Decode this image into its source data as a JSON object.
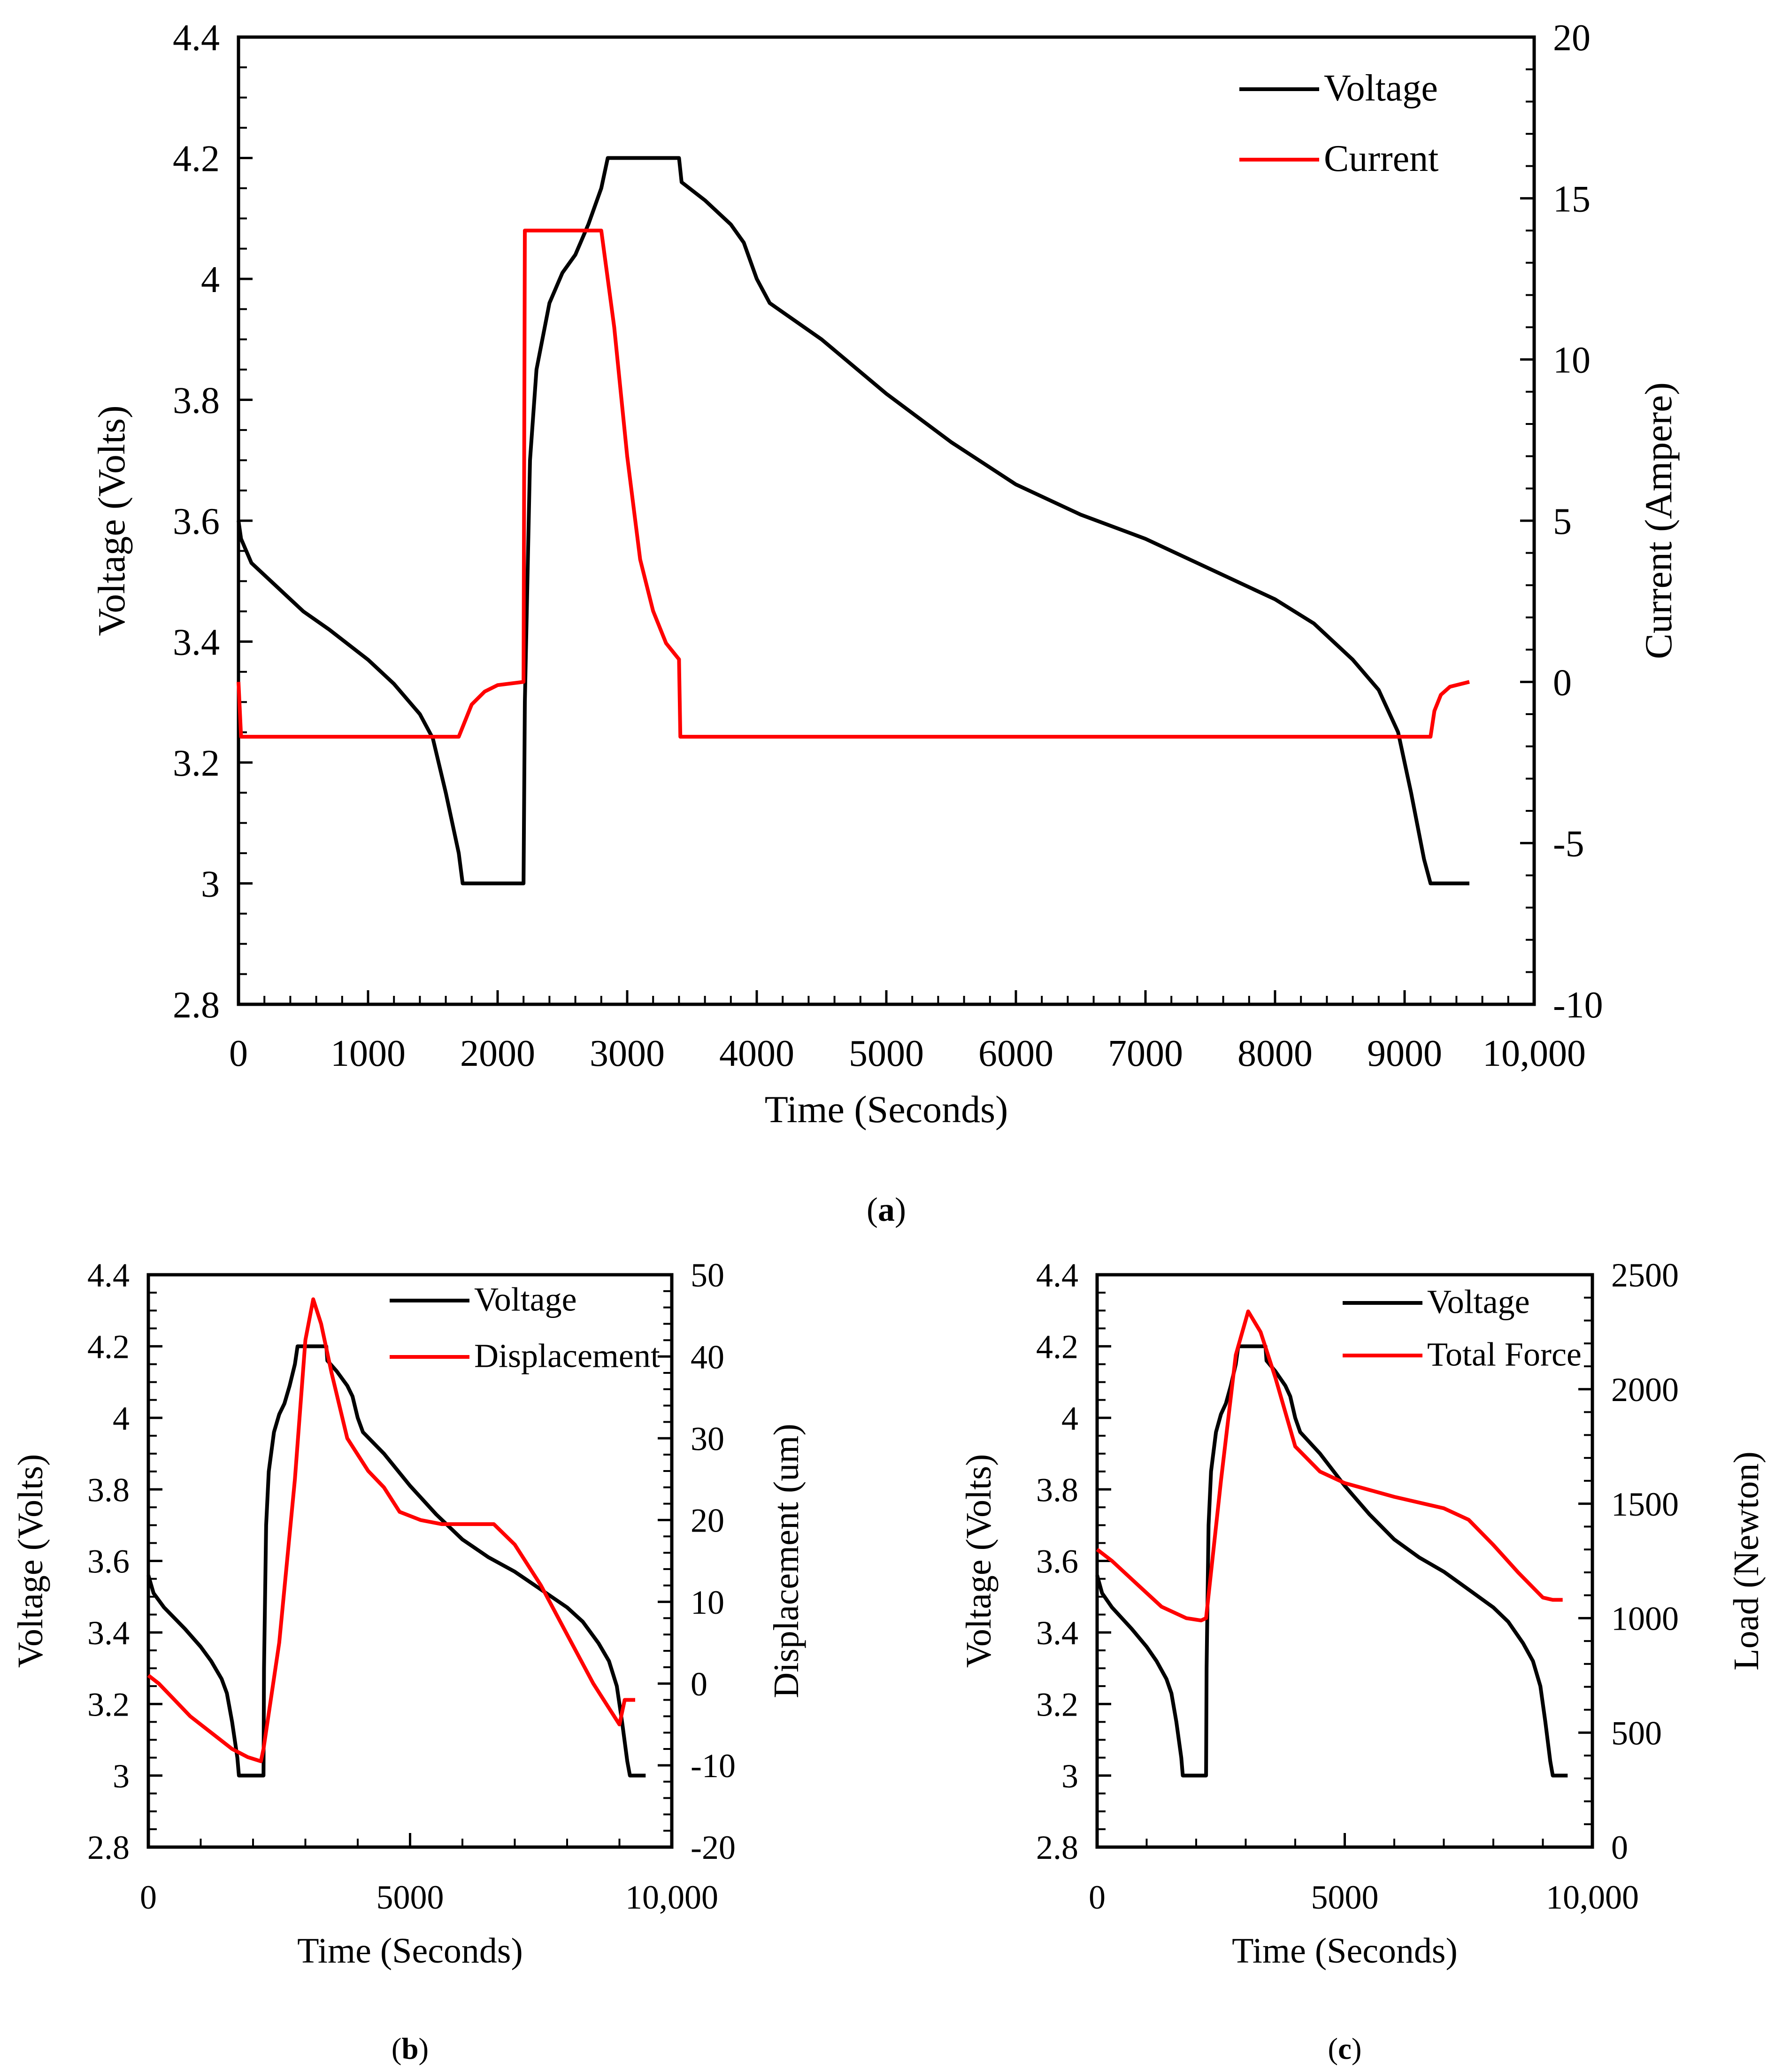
{
  "chart_data": [
    {
      "id": "a",
      "type": "line",
      "caption": "(a)",
      "caption_letter": "a",
      "xlabel": "Time (Seconds)",
      "ylabel": "Voltage (Volts)",
      "y2label": "Current (Ampere)",
      "xlim": [
        0,
        10000
      ],
      "ylim": [
        2.8,
        4.4
      ],
      "y2lim": [
        -10,
        20
      ],
      "xticks": [
        "0",
        "1000",
        "2000",
        "3000",
        "4000",
        "5000",
        "6000",
        "7000",
        "8000",
        "9000",
        "10,000"
      ],
      "xtick_values": [
        0,
        1000,
        2000,
        3000,
        4000,
        5000,
        6000,
        7000,
        8000,
        9000,
        10000
      ],
      "yticks": [
        "2.8",
        "3",
        "3.2",
        "3.4",
        "3.6",
        "3.8",
        "4",
        "4.2",
        "4.4"
      ],
      "ytick_values": [
        2.8,
        3.0,
        3.2,
        3.4,
        3.6,
        3.8,
        4.0,
        4.2,
        4.4
      ],
      "y2ticks": [
        "-10",
        "-5",
        "0",
        "5",
        "10",
        "15",
        "20"
      ],
      "y2tick_values": [
        -10,
        -5,
        0,
        5,
        10,
        15,
        20
      ],
      "legend_position": "top-right",
      "series": [
        {
          "name": "Voltage",
          "axis": "left",
          "color": "#000000",
          "x": [
            0,
            20,
            100,
            300,
            500,
            700,
            1000,
            1200,
            1400,
            1500,
            1600,
            1700,
            1730,
            2200,
            2210,
            2250,
            2300,
            2400,
            2500,
            2600,
            2700,
            2800,
            2850,
            3400,
            3420,
            3600,
            3800,
            3900,
            4000,
            4100,
            4500,
            5000,
            5500,
            6000,
            6500,
            7000,
            7500,
            8000,
            8300,
            8600,
            8800,
            8950,
            9050,
            9150,
            9200,
            9500
          ],
          "y": [
            3.6,
            3.57,
            3.53,
            3.49,
            3.45,
            3.42,
            3.37,
            3.33,
            3.28,
            3.24,
            3.15,
            3.05,
            3.0,
            3.0,
            3.3,
            3.7,
            3.85,
            3.96,
            4.01,
            4.04,
            4.09,
            4.15,
            4.2,
            4.2,
            4.16,
            4.13,
            4.09,
            4.06,
            4.0,
            3.96,
            3.9,
            3.81,
            3.73,
            3.66,
            3.61,
            3.57,
            3.52,
            3.47,
            3.43,
            3.37,
            3.32,
            3.25,
            3.15,
            3.04,
            3.0,
            3.0
          ]
        },
        {
          "name": "Current",
          "axis": "right",
          "color": "#ff0000",
          "x": [
            0,
            20,
            1700,
            1750,
            1800,
            1900,
            2000,
            2200,
            2210,
            2800,
            2900,
            3000,
            3100,
            3200,
            3300,
            3400,
            3410,
            9200,
            9230,
            9280,
            9350,
            9500
          ],
          "y": [
            0,
            -1.7,
            -1.7,
            -1.2,
            -0.7,
            -0.3,
            -0.1,
            0,
            14,
            14,
            11,
            7,
            3.8,
            2.2,
            1.2,
            0.7,
            -1.7,
            -1.7,
            -0.9,
            -0.4,
            -0.15,
            0
          ]
        }
      ]
    },
    {
      "id": "b",
      "type": "line",
      "caption": "(b)",
      "caption_letter": "b",
      "xlabel": "Time (Seconds)",
      "ylabel": "Voltage (Volts)",
      "y2label": "Displacement  (um)",
      "xlim": [
        0,
        10000
      ],
      "ylim": [
        2.8,
        4.4
      ],
      "y2lim": [
        -20,
        50
      ],
      "xticks": [
        "0",
        "5000",
        "10,000"
      ],
      "xtick_values": [
        0,
        5000,
        10000
      ],
      "yticks": [
        "2.8",
        "3",
        "3.2",
        "3.4",
        "3.6",
        "3.8",
        "4",
        "4.2",
        "4.4"
      ],
      "ytick_values": [
        2.8,
        3.0,
        3.2,
        3.4,
        3.6,
        3.8,
        4.0,
        4.2,
        4.4
      ],
      "y2ticks": [
        "-20",
        "-10",
        "0",
        "10",
        "20",
        "30",
        "40",
        "50"
      ],
      "y2tick_values": [
        -20,
        -10,
        0,
        10,
        20,
        30,
        40,
        50
      ],
      "legend_position": "top-right",
      "series": [
        {
          "name": "Voltage",
          "axis": "left",
          "color": "#000000",
          "x": [
            0,
            100,
            300,
            500,
            700,
            1000,
            1200,
            1400,
            1500,
            1600,
            1700,
            1730,
            2200,
            2210,
            2250,
            2300,
            2400,
            2500,
            2600,
            2700,
            2800,
            2850,
            3400,
            3420,
            3600,
            3800,
            3900,
            4000,
            4100,
            4500,
            5000,
            5500,
            6000,
            6500,
            7000,
            7500,
            8000,
            8300,
            8600,
            8800,
            8950,
            9050,
            9150,
            9200,
            9500
          ],
          "y": [
            3.56,
            3.51,
            3.47,
            3.44,
            3.41,
            3.36,
            3.32,
            3.27,
            3.23,
            3.15,
            3.05,
            3.0,
            3.0,
            3.3,
            3.7,
            3.85,
            3.96,
            4.01,
            4.04,
            4.09,
            4.15,
            4.2,
            4.2,
            4.16,
            4.13,
            4.09,
            4.06,
            4.0,
            3.96,
            3.9,
            3.81,
            3.73,
            3.66,
            3.61,
            3.57,
            3.52,
            3.47,
            3.43,
            3.37,
            3.32,
            3.25,
            3.15,
            3.04,
            3.0,
            3.0
          ]
        },
        {
          "name": "Displacement",
          "axis": "right",
          "color": "#ff0000",
          "x": [
            0,
            200,
            500,
            800,
            1200,
            1600,
            1900,
            2150,
            2200,
            2500,
            2800,
            3000,
            3150,
            3300,
            3500,
            3800,
            4200,
            4500,
            4800,
            5200,
            5600,
            6200,
            6600,
            7000,
            7500,
            8000,
            8500,
            8800,
            9000,
            9100,
            9300
          ],
          "y": [
            1,
            0,
            -2,
            -4,
            -6,
            -8,
            -9,
            -9.5,
            -8,
            5,
            25,
            42,
            47,
            44,
            38,
            30,
            26,
            24,
            21,
            20,
            19.5,
            19.5,
            19.5,
            17,
            12,
            6,
            0,
            -3,
            -5,
            -2,
            -2
          ]
        }
      ]
    },
    {
      "id": "c",
      "type": "line",
      "caption": "(c)",
      "caption_letter": "c",
      "xlabel": "Time (Seconds)",
      "ylabel": "Voltage (Volts)",
      "y2label": "Load (Newton)",
      "xlim": [
        0,
        10000
      ],
      "ylim": [
        2.8,
        4.4
      ],
      "y2lim": [
        0,
        2500
      ],
      "xticks": [
        "0",
        "5000",
        "10,000"
      ],
      "xtick_values": [
        0,
        5000,
        10000
      ],
      "yticks": [
        "2.8",
        "3",
        "3.2",
        "3.4",
        "3.6",
        "3.8",
        "4",
        "4.2",
        "4.4"
      ],
      "ytick_values": [
        2.8,
        3.0,
        3.2,
        3.4,
        3.6,
        3.8,
        4.0,
        4.2,
        4.4
      ],
      "y2ticks": [
        "0",
        "500",
        "1000",
        "1500",
        "2000",
        "2500"
      ],
      "y2tick_values": [
        0,
        500,
        1000,
        1500,
        2000,
        2500
      ],
      "legend_position": "top-right",
      "series": [
        {
          "name": "Voltage",
          "axis": "left",
          "color": "#000000",
          "x": [
            0,
            100,
            300,
            500,
            700,
            1000,
            1200,
            1400,
            1500,
            1600,
            1700,
            1730,
            2200,
            2210,
            2250,
            2300,
            2400,
            2500,
            2600,
            2700,
            2800,
            2850,
            3400,
            3420,
            3600,
            3800,
            3900,
            4000,
            4100,
            4500,
            5000,
            5500,
            6000,
            6500,
            7000,
            7500,
            8000,
            8300,
            8600,
            8800,
            8950,
            9050,
            9150,
            9200,
            9500
          ],
          "y": [
            3.56,
            3.51,
            3.47,
            3.44,
            3.41,
            3.36,
            3.32,
            3.27,
            3.23,
            3.15,
            3.05,
            3.0,
            3.0,
            3.3,
            3.7,
            3.85,
            3.96,
            4.01,
            4.04,
            4.09,
            4.15,
            4.2,
            4.2,
            4.16,
            4.13,
            4.09,
            4.06,
            4.0,
            3.96,
            3.9,
            3.81,
            3.73,
            3.66,
            3.61,
            3.57,
            3.52,
            3.47,
            3.43,
            3.37,
            3.32,
            3.25,
            3.15,
            3.04,
            3.0,
            3.0
          ]
        },
        {
          "name": "Total Force",
          "axis": "right",
          "color": "#ff0000",
          "x": [
            0,
            300,
            800,
            1300,
            1800,
            2100,
            2200,
            2500,
            2800,
            3050,
            3300,
            3600,
            4000,
            4500,
            5000,
            6000,
            7000,
            7500,
            8000,
            8500,
            9000,
            9200,
            9400
          ],
          "y": [
            1300,
            1250,
            1150,
            1050,
            1000,
            990,
            1000,
            1600,
            2150,
            2340,
            2250,
            2050,
            1750,
            1640,
            1590,
            1530,
            1480,
            1430,
            1320,
            1200,
            1090,
            1080,
            1080
          ]
        }
      ]
    }
  ]
}
